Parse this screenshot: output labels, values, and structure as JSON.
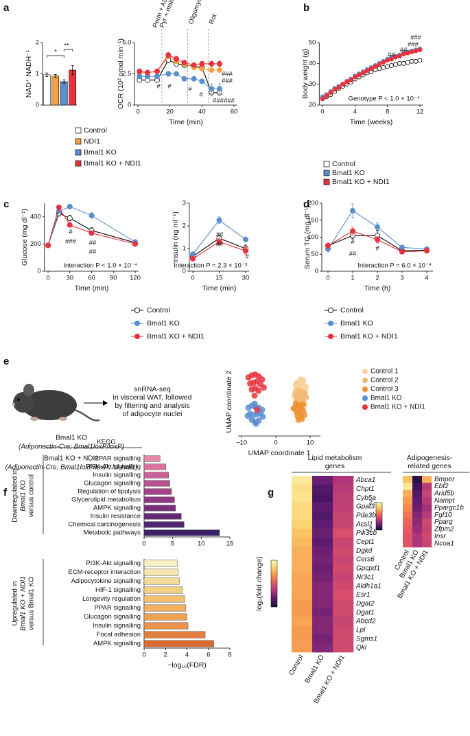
{
  "panels": [
    "a",
    "b",
    "c",
    "d",
    "e",
    "f",
    "g"
  ],
  "schematic": {
    "steps": [
      "snRNA-seq",
      "in visceral WAT, followed",
      "by filtering and analysis",
      "of adipocyte nuclei"
    ],
    "genotypes": [
      "Bmal1 KO",
      "(Adiponectin-Cre; Bmal1loxP/loxP)",
      "Bmal1 KO + NDI1",
      "(Adiponectin-Cre; Bmal1loxP/loxP; lsl-Ndi1)"
    ]
  },
  "chart_data": [
    {
      "type": "bar",
      "ylabel": "NAD⁺ NADH⁻¹",
      "categories": [
        "Control",
        "NDI1",
        "Bmal1 KO",
        "Bmal1 KO + NDI1"
      ],
      "colors": [
        "#ffffff",
        "#f3a243",
        "#5b8ed0",
        "#e8323c"
      ],
      "values": [
        0.97,
        0.93,
        0.75,
        1.12
      ],
      "errors": [
        0.06,
        0.05,
        0.06,
        0.15
      ],
      "ylim": [
        0,
        2
      ],
      "yticks": [
        0,
        1,
        2
      ],
      "annotations": [
        "*",
        "**"
      ]
    },
    {
      "type": "line",
      "ylabel": "OCR (10² pmol min⁻¹)",
      "xlabel": "Time (min)",
      "x": [
        1,
        6,
        12,
        19,
        24,
        29,
        35,
        40,
        46,
        51
      ],
      "xlim": [
        -2,
        62
      ],
      "xticks": [
        0,
        20,
        40,
        60
      ],
      "ylim": [
        0,
        5
      ],
      "yticks": [
        0,
        2.5,
        {
          "value": 5,
          "label": "5.0"
        }
      ],
      "vlines": [
        15,
        31,
        44
      ],
      "series": [
        {
          "color": "#ffffff",
          "line_color": "#000000",
          "values": [
            2.0,
            2.0,
            2.0,
            3.6,
            3.3,
            3.2,
            3.1,
            3.0,
            1.0,
            1.0
          ],
          "errors": [
            0.15,
            0.1,
            0.1,
            0.2,
            0.15,
            0.15,
            0.15,
            0.15,
            0.2,
            0.2
          ]
        },
        {
          "color": "#f3a243",
          "values": [
            2.6,
            2.6,
            2.7,
            3.9,
            3.5,
            3.3,
            3.0,
            2.9,
            2.8,
            2.8
          ],
          "errors": [
            0.1,
            0.1,
            0.1,
            0.15,
            0.1,
            0.1,
            0.1,
            0.1,
            0.15,
            0.15
          ]
        },
        {
          "color": "#5b8ed0",
          "values": [
            2.3,
            2.3,
            2.3,
            2.5,
            2.5,
            2.1,
            2.1,
            1.9,
            1.3,
            1.3
          ],
          "errors": [
            0.2,
            0.15,
            0.15,
            0.2,
            0.15,
            0.15,
            0.15,
            0.15,
            0.4,
            0.4
          ]
        },
        {
          "color": "#e8323c",
          "values": [
            2.7,
            2.6,
            2.7,
            4.0,
            3.7,
            3.4,
            3.2,
            3.3,
            3.3,
            3.3
          ],
          "errors": [
            0.2,
            0.15,
            0.15,
            0.2,
            0.2,
            0.15,
            0.15,
            0.2,
            0.2,
            0.2
          ]
        }
      ],
      "annotations": [
        "Perm + ADP",
        "Pyr + malate",
        "Oligomycin",
        "Rot",
        "#",
        "#",
        "#",
        "#",
        "###",
        "###",
        "###",
        "###"
      ]
    },
    {
      "type": "line",
      "ylabel": "Body weight (g)",
      "xlabel": "Time (weeks)",
      "x": [
        0,
        0.5,
        1,
        1.5,
        2,
        2.5,
        3,
        3.5,
        4,
        4.5,
        5,
        5.5,
        6,
        6.5,
        7,
        7.5,
        8,
        8.5,
        9,
        9.5,
        10,
        10.5,
        11,
        11.5,
        12
      ],
      "xlim": [
        -0.4,
        12.4
      ],
      "xticks": [
        0,
        4,
        8,
        12
      ],
      "ylim": [
        20,
        50
      ],
      "yticks": [
        20,
        30,
        40,
        50
      ],
      "series": [
        {
          "name": "Control",
          "color": "#ffffff",
          "line_color": "#000000",
          "values": [
            23,
            24,
            25,
            26.5,
            28,
            29,
            30,
            31,
            32.5,
            33.5,
            34.5,
            35.5,
            36,
            37,
            37.5,
            38,
            38.5,
            39,
            39.5,
            40,
            40,
            40.5,
            41,
            41,
            41.5
          ]
        },
        {
          "name": "Bmal1 KO",
          "color": "#5b8ed0",
          "values": [
            24,
            25,
            26.5,
            28,
            29,
            30,
            31.5,
            32.5,
            34,
            35,
            36,
            37,
            38,
            39,
            40,
            41,
            42,
            43,
            43.5,
            44,
            45,
            45.5,
            46,
            46.5,
            47
          ]
        },
        {
          "name": "Bmal1 KO + NDI1",
          "color": "#e8323c",
          "values": [
            23,
            24.5,
            26,
            27.5,
            28.5,
            30,
            31,
            32,
            33.5,
            34.5,
            35.5,
            36.5,
            37.5,
            38.5,
            39.5,
            40.5,
            41.5,
            42,
            43,
            43.5,
            44.5,
            45,
            45.5,
            46,
            46.5
          ]
        }
      ],
      "annotations": [
        "##",
        "##",
        "###",
        "###",
        "Genotype P < 1.0 × 10⁻⁴"
      ]
    },
    {
      "type": "line",
      "ylabel": "Glucose (mg dl⁻¹)",
      "xlabel": "Time (min)",
      "x": [
        0,
        15,
        30,
        60,
        120
      ],
      "xlim": [
        -5,
        125
      ],
      "xticks": [
        0,
        30,
        60,
        90,
        120
      ],
      "ylim": [
        0,
        500
      ],
      "yticks": [
        0,
        200,
        400
      ],
      "series": [
        {
          "name": "Control",
          "color": "#ffffff",
          "line_color": "#000000",
          "values": [
            190,
            425,
            390,
            300,
            210
          ],
          "errors": [
            10,
            20,
            20,
            20,
            10
          ]
        },
        {
          "name": "Bmal1 KO",
          "color": "#5b8ed0",
          "values": [
            190,
            440,
            475,
            410,
            215
          ],
          "errors": [
            10,
            15,
            15,
            20,
            15
          ]
        },
        {
          "name": "Bmal1 KO + NDI1",
          "color": "#e8323c",
          "values": [
            190,
            470,
            340,
            280,
            200
          ],
          "errors": [
            10,
            15,
            15,
            15,
            10
          ]
        }
      ],
      "annotations": [
        "#",
        "###",
        "##",
        "##",
        "Interaction P < 1.0 × 10⁻⁴"
      ]
    },
    {
      "type": "line",
      "ylabel": "Insulin (ng ml⁻¹)",
      "xlabel": "Time (min)",
      "x": [
        0,
        15,
        30
      ],
      "xlim": [
        -2,
        32
      ],
      "xticks": [
        0,
        15,
        30
      ],
      "ylim": [
        0,
        3
      ],
      "yticks": [
        0,
        1,
        2,
        3
      ],
      "series": [
        {
          "color": "#ffffff",
          "line_color": "#000000",
          "values": [
            0.65,
            1.45,
            1.0
          ],
          "errors": [
            0.1,
            0.15,
            0.15
          ]
        },
        {
          "color": "#5b8ed0",
          "values": [
            0.75,
            2.25,
            1.4
          ],
          "errors": [
            0.1,
            0.15,
            0.05
          ]
        },
        {
          "color": "#e8323c",
          "values": [
            0.55,
            1.3,
            0.9
          ],
          "errors": [
            0.1,
            0.15,
            0.15
          ]
        }
      ],
      "annotations": [
        "##",
        "##",
        "#",
        "Interaction P = 2.3 × 10⁻³"
      ]
    },
    {
      "type": "line",
      "ylabel": "Serum TG (mg dl⁻¹)",
      "xlabel": "Time (h)",
      "x": [
        0,
        1,
        2,
        3,
        4
      ],
      "xlim": [
        -0.25,
        4.25
      ],
      "xticks": [
        0,
        1,
        2,
        3,
        4
      ],
      "ylim": [
        0,
        200
      ],
      "yticks": [
        0,
        50,
        100,
        150,
        200
      ],
      "series": [
        {
          "name": "Control",
          "color": "#ffffff",
          "line_color": "#000000",
          "values": [
            75,
            105,
            105,
            60,
            62
          ],
          "errors": [
            8,
            10,
            15,
            5,
            5
          ]
        },
        {
          "name": "Bmal1 KO",
          "color": "#5b8ed0",
          "values": [
            65,
            178,
            130,
            70,
            65
          ],
          "errors": [
            8,
            20,
            12,
            5,
            5
          ]
        },
        {
          "name": "Bmal1 KO + NDI1",
          "color": "#e8323c",
          "values": [
            75,
            118,
            93,
            57,
            60
          ],
          "errors": [
            8,
            12,
            10,
            5,
            5
          ]
        }
      ],
      "annotations": [
        "#",
        "##",
        "#",
        "Interaction P = 6.0 × 10⁻⁴"
      ]
    },
    {
      "type": "scatter",
      "xlabel": "UMAP coordinate 1",
      "ylabel": "UMAP coordinate 2",
      "xlim": [
        -11,
        13
      ],
      "xticks": [
        {
          "value": -10,
          "label": "−10"
        },
        0,
        10
      ],
      "ylim": [
        -9,
        8
      ],
      "series": [
        {
          "name": "Control 1",
          "color": "#f8d19c",
          "x": [
            6,
            7,
            8,
            6.5,
            7.5,
            8.5,
            5.8,
            7.2,
            8,
            6.8,
            7.6,
            6.2,
            8.8,
            7,
            7.9
          ],
          "y": [
            4,
            4.5,
            3.8,
            2.8,
            3.2,
            2.5,
            3.5,
            5,
            4.8,
            1.8,
            2,
            4.2,
            3.1,
            3.6,
            1.5
          ]
        },
        {
          "name": "Control 2",
          "color": "#f5b870",
          "x": [
            5.5,
            6.5,
            7.5,
            8.5,
            6,
            7,
            8,
            5.8,
            6.8,
            7.8,
            8.8,
            6.3,
            7.3,
            8.3,
            7.1
          ],
          "y": [
            1,
            1.2,
            0.8,
            1.5,
            0,
            0.3,
            -0.2,
            2,
            2.2,
            1.8,
            0.5,
            -1,
            -0.8,
            -1.2,
            -0.5
          ]
        },
        {
          "name": "Control 3",
          "color": "#ec9230",
          "x": [
            5.5,
            6.5,
            7.5,
            6,
            7,
            8,
            5.8,
            6.8,
            7.8,
            6.3,
            7.3,
            8.3,
            6.6,
            7.6,
            5.2
          ],
          "y": [
            -2,
            -2.5,
            -2,
            -3,
            -3.2,
            -2.8,
            -1,
            -1.5,
            -1.2,
            -4,
            -4.2,
            -3.8,
            -5,
            -4.8,
            -2.2
          ]
        },
        {
          "name": "Bmal1 KO",
          "color": "#5b8ed0",
          "x": [
            -8,
            -7,
            -6,
            -5,
            -4,
            -7.5,
            -6.5,
            -5.5,
            -4.5,
            -7,
            -6,
            -5,
            -8.2,
            -3.8,
            -6.2,
            -5.8
          ],
          "y": [
            -2,
            -1.5,
            -1.8,
            -2,
            -2.5,
            -3.5,
            -3.8,
            -3.6,
            -3.4,
            -5,
            -5.5,
            -5.2,
            -4,
            -4.2,
            -1,
            -6
          ]
        },
        {
          "name": "Bmal1 KO + NDI1",
          "color": "#e8323c",
          "x": [
            -8,
            -7,
            -6,
            -5,
            -4,
            -7.5,
            -6.5,
            -5.5,
            -4.5,
            -7,
            -6,
            -5,
            -6.2,
            -5.5,
            -3.5
          ],
          "y": [
            5.5,
            6,
            6.2,
            5.8,
            5,
            4,
            4.2,
            4.5,
            3.8,
            2.5,
            2.8,
            2.2,
            1,
            -2.5,
            3
          ]
        }
      ]
    },
    {
      "type": "barh",
      "header": "KEGG",
      "group_label": [
        "Downregulated in",
        "Bmal1 KO",
        "versus control"
      ],
      "categories": [
        "PPAR signalling",
        "PI3K-Akt signalling",
        "Insulin signalling",
        "Glucagon signalling",
        "Regulation of lipolysis",
        "Glycerolipid metabolism",
        "AMPK signalling",
        "Insulin resistance",
        "Chemical carcinogenesis",
        "Metabolic pathways"
      ],
      "values": [
        2.8,
        3.8,
        4.3,
        4.5,
        4.8,
        5.3,
        5.5,
        6.5,
        7.0,
        13.2
      ],
      "colors": [
        "#e48aa8",
        "#d874a0",
        "#c96097",
        "#b9508f",
        "#a54388",
        "#8f3882",
        "#7a2f7c",
        "#642a76",
        "#4f2670",
        "#3b2266"
      ],
      "xlim": [
        0,
        15
      ],
      "xticks": [
        0,
        5,
        10,
        15
      ]
    },
    {
      "type": "barh",
      "group_label": [
        "Upregulated in",
        "Bmal1 KO + NDI1",
        "versus Bmal1 KO"
      ],
      "xlabel": "−log₁₀(FDR)",
      "categories": [
        "PI3K-Akt signalling",
        "ECM-receptor interaction",
        "Adipocytokine signalling",
        "HIF-1 signalling",
        "Longevity regulation",
        "PPAR signalling",
        "Glucagon signalling",
        "Insulin signalling",
        "Focal adhesion",
        "AMPK signalling"
      ],
      "values": [
        3.1,
        3.2,
        3.3,
        3.6,
        3.8,
        3.9,
        4.0,
        4.1,
        5.7,
        6.5
      ],
      "colors": [
        "#f6efc3",
        "#f5e7ae",
        "#f5dd98",
        "#f5d083",
        "#f4c06f",
        "#f2b05f",
        "#efa153",
        "#ec924a",
        "#e27f3f",
        "#d86c34"
      ],
      "xlim": [
        0,
        8
      ],
      "xticks": [
        0,
        2,
        4,
        6,
        8
      ]
    },
    {
      "type": "heatmap",
      "title": [
        "Lipid metabolism",
        "genes"
      ],
      "colorbar_label": "log₂(fold change)",
      "columns": [
        "Control",
        "Bmal1 KO",
        "Bmal1 KO + NDI1"
      ],
      "rows": [
        "Abca1",
        "Chpt1",
        "Cyb5a",
        "Gpat3",
        "Pde3b",
        "Acsl1",
        "Pik3cb",
        "Cept1",
        "Dgkd",
        "Cers6",
        "Gpcpd1",
        "Nr3c1",
        "Aldh1a1",
        "Esr1",
        "Dgat2",
        "Dgat1",
        "Abcd2",
        "Lpl",
        "Sgms1",
        "Qki"
      ],
      "values": [
        [
          1.8,
          -1.2,
          -0.6
        ],
        [
          1.6,
          -1.4,
          -0.5
        ],
        [
          1.7,
          -1.5,
          -0.4
        ],
        [
          1.5,
          -1.3,
          -0.4
        ],
        [
          1.5,
          -1.4,
          -0.3
        ],
        [
          1.4,
          -1.3,
          -0.3
        ],
        [
          1.2,
          -1.2,
          -0.1
        ],
        [
          1.1,
          -1.3,
          -0.3
        ],
        [
          1.0,
          -1.2,
          -0.2
        ],
        [
          1.0,
          -1.1,
          -0.3
        ],
        [
          1.0,
          -1.2,
          -0.2
        ],
        [
          0.9,
          -1.1,
          -0.3
        ],
        [
          0.9,
          -1.0,
          -0.2
        ],
        [
          0.9,
          -1.0,
          -0.1
        ],
        [
          0.8,
          -1.0,
          -0.2
        ],
        [
          0.8,
          -1.1,
          -0.2
        ],
        [
          0.9,
          -1.0,
          -0.3
        ],
        [
          0.8,
          -1.0,
          -0.2
        ],
        [
          0.8,
          -1.1,
          -0.2
        ],
        [
          0.8,
          -1.0,
          -0.2
        ]
      ],
      "clim": [
        -2,
        2
      ],
      "colormap": [
        "#150d38",
        "#5a1a6e",
        "#a8337a",
        "#e0536a",
        "#f68e4a",
        "#fbd06a",
        "#fcf3b0"
      ]
    },
    {
      "type": "heatmap",
      "title": [
        "Adipogenesis-",
        "related genes"
      ],
      "columns": [
        "Control",
        "Bmal1 KO",
        "Bmal1 KO + NDI1"
      ],
      "rows": [
        "Bmper",
        "Ebf2",
        "Arid5b",
        "Nampt",
        "Ppargc1b",
        "Fgf10",
        "Pparg",
        "Zfpm2",
        "Insr",
        "Ncoa1"
      ],
      "values": [
        [
          1.2,
          -1.8,
          1.0
        ],
        [
          1.8,
          -1.6,
          -0.5
        ],
        [
          1.0,
          -1.4,
          -0.3
        ],
        [
          0.8,
          -1.3,
          -0.5
        ],
        [
          0.6,
          -1.2,
          -0.7
        ],
        [
          0.4,
          -1.0,
          -0.5
        ],
        [
          0.2,
          -0.9,
          -0.2
        ],
        [
          0.1,
          -0.8,
          -0.3
        ],
        [
          0.0,
          -0.6,
          -0.2
        ],
        [
          0.0,
          -0.6,
          -0.3
        ]
      ],
      "clim": [
        -2,
        2
      ],
      "cticks": [
        2,
        {
          "value": -2,
          "label": "−2"
        }
      ],
      "colormap": [
        "#150d38",
        "#5a1a6e",
        "#a8337a",
        "#e0536a",
        "#f68e4a",
        "#fbd06a",
        "#fcf3b0"
      ]
    }
  ]
}
